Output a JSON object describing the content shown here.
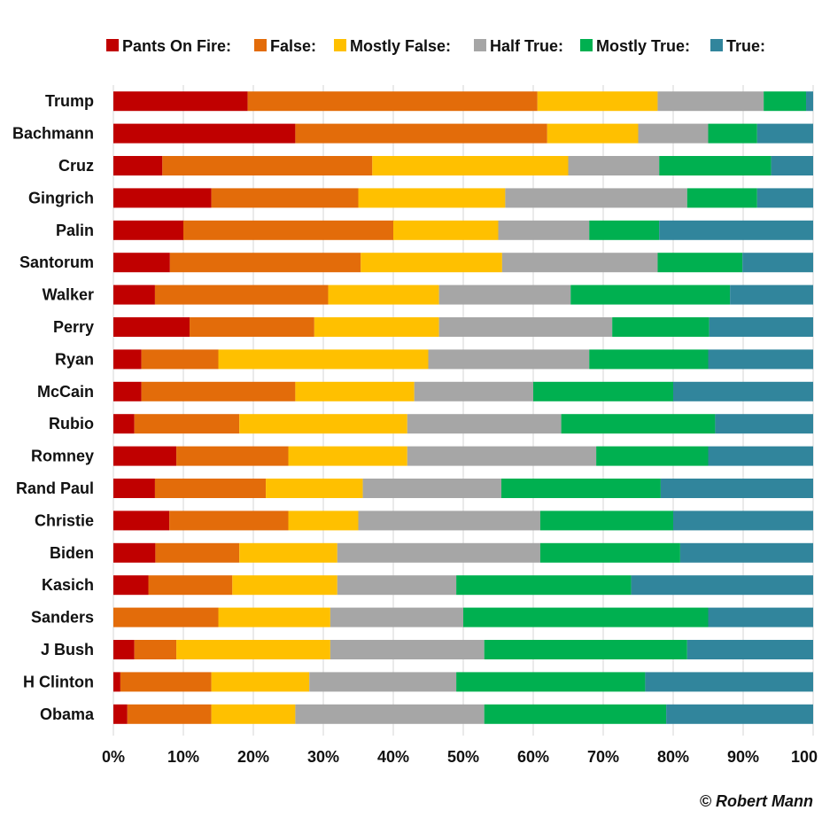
{
  "chart_data": {
    "type": "bar",
    "orientation": "horizontal",
    "stacked": "percent",
    "credit": "© Robert Mann",
    "categories": [
      "Trump",
      "Bachmann",
      "Cruz",
      "Gingrich",
      "Palin",
      "Santorum",
      "Walker",
      "Perry",
      "Ryan",
      "McCain",
      "Rubio",
      "Romney",
      "Rand Paul",
      "Christie",
      "Biden",
      "Kasich",
      "Sanders",
      "J Bush",
      "H Clinton",
      "Obama"
    ],
    "series": [
      {
        "name": "Pants On Fire:",
        "color": "#c00000",
        "values": [
          19,
          26,
          7,
          14,
          10,
          8,
          6,
          11,
          4,
          4,
          3,
          9,
          6,
          8,
          6,
          5,
          0,
          3,
          1,
          2
        ]
      },
      {
        "name": "False:",
        "color": "#e36c0a",
        "values": [
          41,
          36,
          30,
          21,
          30,
          27,
          25,
          18,
          11,
          22,
          15,
          16,
          16,
          17,
          12,
          12,
          15,
          6,
          13,
          12
        ]
      },
      {
        "name": "Mostly False:",
        "color": "#ffc000",
        "values": [
          17,
          13,
          28,
          21,
          15,
          20,
          16,
          18,
          30,
          17,
          24,
          17,
          14,
          10,
          14,
          15,
          16,
          22,
          14,
          12
        ]
      },
      {
        "name": "Half True:",
        "color": "#a6a6a6",
        "values": [
          15,
          10,
          13,
          26,
          13,
          22,
          19,
          25,
          23,
          17,
          22,
          27,
          20,
          26,
          29,
          17,
          19,
          22,
          21,
          27
        ]
      },
      {
        "name": "Mostly True:",
        "color": "#00b050",
        "values": [
          6,
          7,
          16,
          10,
          10,
          12,
          23,
          14,
          17,
          20,
          22,
          16,
          23,
          19,
          20,
          25,
          35,
          29,
          27,
          26
        ]
      },
      {
        "name": "True:",
        "color": "#31859c",
        "values": [
          1,
          8,
          6,
          8,
          22,
          10,
          12,
          15,
          15,
          20,
          14,
          15,
          22,
          20,
          19,
          26,
          15,
          18,
          24,
          21
        ]
      }
    ],
    "xlim": [
      0,
      100
    ],
    "xticks": [
      "0%",
      "10%",
      "20%",
      "30%",
      "40%",
      "50%",
      "60%",
      "70%",
      "80%",
      "90%",
      "100"
    ],
    "grid": "vertical",
    "legend_position": "top"
  }
}
